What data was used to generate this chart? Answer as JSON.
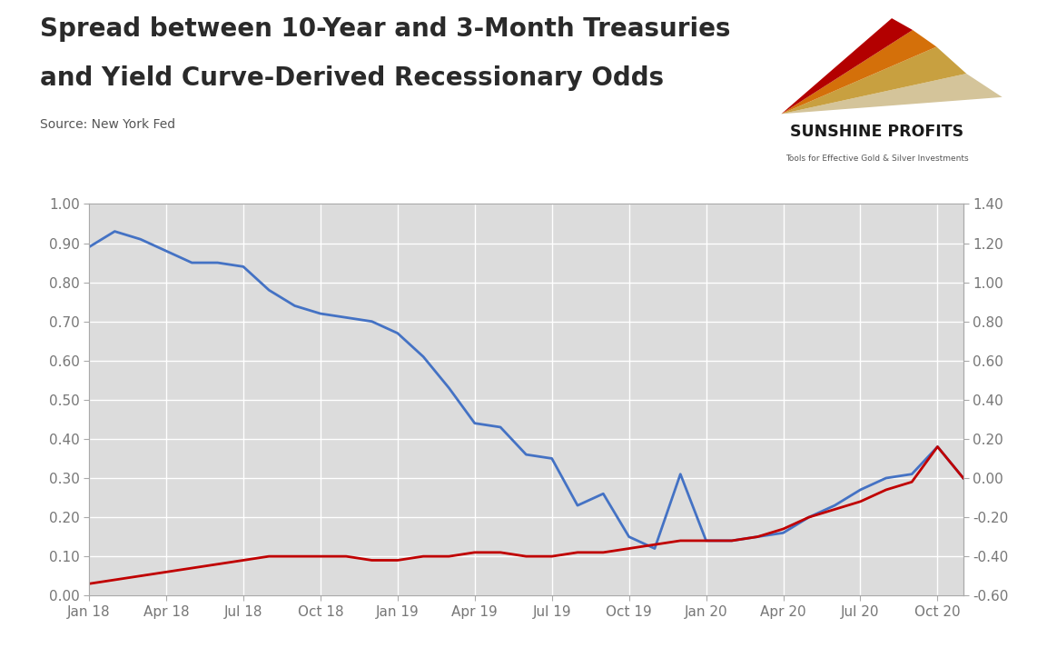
{
  "title_line1": "Spread between 10-Year and 3-Month Treasuries",
  "title_line2": "and Yield Curve-Derived Recessionary Odds",
  "source": "Source: New York Fed",
  "bg_plot": "#dcdcdc",
  "bg_outer": "#ffffff",
  "left_ylim": [
    0.0,
    1.0
  ],
  "right_ylim": [
    -0.6,
    1.4
  ],
  "left_yticks": [
    0.0,
    0.1,
    0.2,
    0.3,
    0.4,
    0.5,
    0.6,
    0.7,
    0.8,
    0.9,
    1.0
  ],
  "right_yticks": [
    -0.6,
    -0.4,
    -0.2,
    0.0,
    0.2,
    0.4,
    0.6,
    0.8,
    1.0,
    1.2,
    1.4
  ],
  "xtick_labels": [
    "Jan 18",
    "Apr 18",
    "Jul 18",
    "Oct 18",
    "Jan 19",
    "Apr 19",
    "Jul 19",
    "Oct 19",
    "Jan 20",
    "Apr 20",
    "Jul 20",
    "Oct 20"
  ],
  "xtick_positions": [
    0,
    3,
    6,
    9,
    12,
    15,
    18,
    21,
    24,
    27,
    30,
    33
  ],
  "blue_color": "#4472C4",
  "red_color": "#C00000",
  "blue_data": [
    0.89,
    0.93,
    0.91,
    0.88,
    0.85,
    0.85,
    0.84,
    0.78,
    0.74,
    0.72,
    0.71,
    0.7,
    0.67,
    0.61,
    0.53,
    0.44,
    0.43,
    0.36,
    0.35,
    0.23,
    0.26,
    0.15,
    0.12,
    0.31,
    0.14,
    0.14,
    0.15,
    0.16,
    0.2,
    0.23,
    0.27,
    0.3,
    0.31,
    0.38,
    0.3
  ],
  "red_data": [
    0.03,
    0.04,
    0.05,
    0.06,
    0.07,
    0.08,
    0.09,
    0.1,
    0.1,
    0.1,
    0.1,
    0.09,
    0.09,
    0.1,
    0.1,
    0.11,
    0.11,
    0.1,
    0.1,
    0.11,
    0.11,
    0.12,
    0.13,
    0.14,
    0.14,
    0.14,
    0.15,
    0.17,
    0.2,
    0.22,
    0.24,
    0.27,
    0.29,
    0.38,
    0.3
  ],
  "title_fontsize": 20,
  "source_fontsize": 10,
  "tick_fontsize": 11,
  "tick_color": "#777777",
  "grid_color": "#ffffff",
  "spine_color": "#aaaaaa",
  "logo_text_sunshine": "SUNSHINE PROFITS",
  "logo_subtext": "Tools for Effective Gold & Silver Investments"
}
